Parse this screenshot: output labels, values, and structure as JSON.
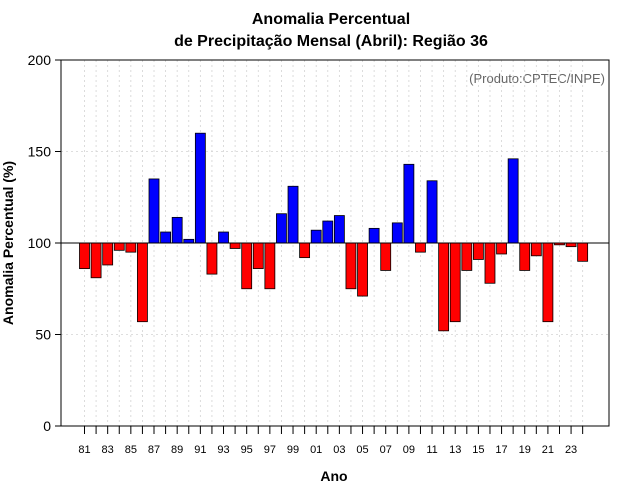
{
  "chart_data": {
    "type": "bar",
    "title_line1": "Anomalia Percentual",
    "title_line2": "de Precipitação Mensal (Abril): Região 36",
    "xlabel": "Ano",
    "ylabel": "Anomalia Percentual (%)",
    "source": "(Produto:CPTEC/INPE)",
    "baseline": 100,
    "ylim": [
      0,
      200
    ],
    "yticks": [
      0,
      50,
      100,
      150,
      200
    ],
    "grid": true,
    "colors": {
      "above": "#0000ff",
      "below": "#ff0000",
      "edge": "#000000",
      "grid": "#d3d3d3"
    },
    "categories": [
      "81",
      "82",
      "83",
      "84",
      "85",
      "86",
      "87",
      "88",
      "89",
      "90",
      "91",
      "92",
      "93",
      "94",
      "95",
      "96",
      "97",
      "98",
      "99",
      "00",
      "01",
      "02",
      "03",
      "04",
      "05",
      "06",
      "07",
      "08",
      "09",
      "10",
      "11",
      "12",
      "13",
      "14",
      "15",
      "16",
      "17",
      "18",
      "19",
      "20",
      "21",
      "22",
      "23",
      "24"
    ],
    "xtick_labels": [
      "81",
      "83",
      "85",
      "87",
      "89",
      "91",
      "93",
      "95",
      "97",
      "99",
      "01",
      "03",
      "05",
      "07",
      "09",
      "11",
      "13",
      "15",
      "17",
      "19",
      "21",
      "23"
    ],
    "values": [
      86,
      81,
      88,
      96,
      95,
      57,
      135,
      106,
      114,
      102,
      160,
      83,
      106,
      97,
      75,
      86,
      75,
      116,
      131,
      92,
      107,
      112,
      115,
      75,
      71,
      108,
      85,
      111,
      143,
      95,
      134,
      52,
      57,
      85,
      91,
      78,
      94,
      146,
      85,
      93,
      57,
      99,
      98,
      90
    ]
  }
}
